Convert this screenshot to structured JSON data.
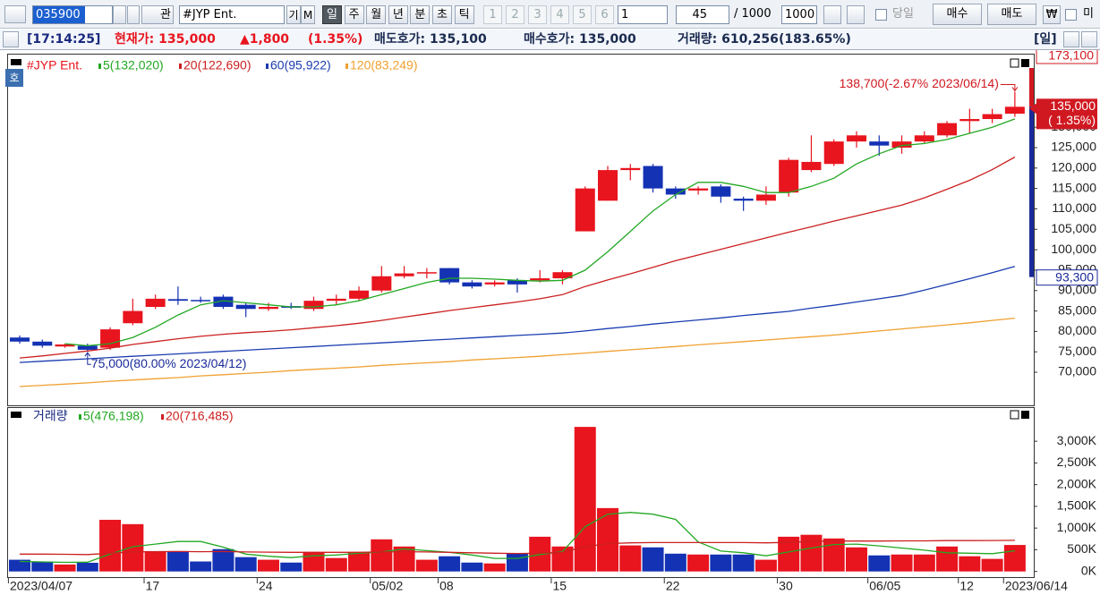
{
  "toolbar": {
    "code": "035900",
    "search": "관",
    "name": "#JYP Ent.",
    "buttons": [
      "기",
      "M"
    ],
    "periods": [
      "일",
      "주",
      "월",
      "년",
      "분",
      "초",
      "틱"
    ],
    "slots": [
      "1",
      "2",
      "3",
      "4",
      "5",
      "6"
    ],
    "unit": "1",
    "count": "45",
    "max": "/ 1000",
    "max_input": "1000",
    "today": "당일",
    "buy": "매수",
    "sell": "매도",
    "currency": "₩",
    "more": "미"
  },
  "info_bar": {
    "time": "[17:14:25]",
    "price": "현재가: 135,000",
    "change": "▲1,800",
    "change_rate": "(1.35%)",
    "ask": "매도호가: 135,100",
    "bid": "매수호가: 135,000",
    "volume": "거래량: 610,256",
    "volume_rate": "(183.65%)",
    "period": "[일]",
    "side_badge": "호"
  },
  "price_chart": {
    "type": "candlestick",
    "title": "#JYP Ent.",
    "up_color": "#e8141e",
    "down_color": "#1432b4",
    "dates": [
      "2023/04/07",
      null,
      null,
      null,
      null,
      null,
      "17",
      null,
      null,
      null,
      null,
      "24",
      null,
      null,
      null,
      null,
      "05/02",
      null,
      null,
      "08",
      null,
      null,
      null,
      null,
      "15",
      null,
      null,
      null,
      null,
      "22",
      null,
      null,
      null,
      null,
      "30",
      null,
      null,
      null,
      "06/05",
      null,
      null,
      null,
      "12",
      null,
      "2023/06/14"
    ],
    "open": [
      78500,
      77500,
      76300,
      76500,
      76000,
      82000,
      86000,
      87900,
      87700,
      88500,
      86500,
      85500,
      86200,
      85500,
      87500,
      88000,
      90000,
      93500,
      94300,
      95500,
      92000,
      91500,
      92500,
      92500,
      93000,
      104500,
      112000,
      119500,
      120500,
      115000,
      114500,
      115500,
      112500,
      112000,
      114000,
      119500,
      121000,
      126500,
      126500,
      125000,
      126500,
      128000,
      131500,
      132000,
      133300
    ],
    "high": [
      79000,
      78000,
      77000,
      77000,
      81000,
      88000,
      89000,
      91000,
      88500,
      89000,
      87000,
      87000,
      87000,
      88500,
      89000,
      91000,
      96000,
      96000,
      95500,
      95500,
      92500,
      92500,
      93000,
      95000,
      95000,
      115500,
      120500,
      121000,
      121000,
      115500,
      115500,
      116000,
      113000,
      115500,
      122500,
      128000,
      127000,
      129000,
      128000,
      128000,
      129000,
      131500,
      134500,
      134500,
      138700
    ],
    "low": [
      77000,
      76000,
      76000,
      75000,
      75500,
      81500,
      85500,
      86500,
      87000,
      85500,
      83500,
      85000,
      85500,
      85000,
      86500,
      87500,
      89500,
      93000,
      93000,
      91500,
      90500,
      91000,
      89500,
      92000,
      91500,
      104500,
      112000,
      117000,
      114000,
      112500,
      113500,
      111500,
      109500,
      111000,
      113000,
      119000,
      120500,
      125000,
      123000,
      123500,
      126000,
      127500,
      128500,
      131000,
      132500
    ],
    "close": [
      77500,
      76500,
      76800,
      75500,
      80500,
      85000,
      88000,
      87500,
      87500,
      86000,
      85500,
      86000,
      85800,
      87500,
      88000,
      90000,
      93500,
      94200,
      94500,
      92000,
      91000,
      92000,
      91500,
      93000,
      94500,
      115000,
      119500,
      120000,
      115000,
      113500,
      115000,
      113000,
      112000,
      113500,
      122000,
      121500,
      126500,
      128000,
      125500,
      126500,
      128000,
      131000,
      132000,
      133200,
      135000
    ],
    "moving_averages": [
      {
        "name": "5(132,020)",
        "color": "#22a822",
        "values": [
          null,
          null,
          77000,
          76500,
          77000,
          78500,
          81000,
          84000,
          86500,
          87500,
          87000,
          86500,
          86000,
          86000,
          86500,
          87500,
          89000,
          90500,
          92000,
          93000,
          93000,
          92800,
          92500,
          92300,
          92500,
          95000,
          99500,
          104500,
          109500,
          113500,
          116500,
          116500,
          115500,
          114000,
          114000,
          115500,
          117500,
          121000,
          123500,
          125500,
          126000,
          127000,
          128500,
          130000,
          132020
        ]
      },
      {
        "name": "20(122,690)",
        "color": "#cc2020",
        "values": [
          73500,
          74000,
          74600,
          75200,
          75900,
          76800,
          77500,
          78200,
          78800,
          79300,
          79700,
          80000,
          80400,
          80900,
          81400,
          82000,
          82700,
          83500,
          84300,
          85100,
          85800,
          86500,
          87200,
          88000,
          89000,
          91000,
          92600,
          94100,
          95700,
          97300,
          98700,
          100100,
          101500,
          102900,
          104300,
          105600,
          107000,
          108300,
          109600,
          110900,
          112700,
          114800,
          117000,
          119600,
          122690
        ]
      },
      {
        "name": "60(95,922)",
        "color": "#1a3cb0",
        "values": [
          72400,
          72700,
          73000,
          73300,
          73600,
          73900,
          74200,
          74500,
          74800,
          75100,
          75400,
          75700,
          76000,
          76300,
          76600,
          76900,
          77200,
          77500,
          77800,
          78100,
          78400,
          78700,
          79000,
          79300,
          79600,
          80100,
          80700,
          81200,
          81800,
          82300,
          82800,
          83300,
          83900,
          84400,
          84900,
          85700,
          86400,
          87200,
          88000,
          88800,
          90100,
          91500,
          92900,
          94400,
          95922
        ]
      },
      {
        "name": "120(83,249)",
        "color": "#f0a030",
        "values": [
          66500,
          66800,
          67100,
          67400,
          67800,
          68100,
          68400,
          68700,
          69100,
          69400,
          69700,
          70000,
          70400,
          70700,
          71000,
          71300,
          71700,
          72000,
          72300,
          72600,
          73000,
          73300,
          73600,
          73900,
          74300,
          74700,
          75100,
          75500,
          75900,
          76300,
          76700,
          77100,
          77500,
          77900,
          78300,
          78700,
          79100,
          79600,
          80100,
          80600,
          81100,
          81600,
          82100,
          82700,
          83249
        ]
      }
    ],
    "ylim": [
      61900,
      148000
    ],
    "yticks": [
      {
        "value": 70000,
        "label": "70,000"
      },
      {
        "value": 75000,
        "label": "75,000"
      },
      {
        "value": 80000,
        "label": "80,000"
      },
      {
        "value": 85000,
        "label": "85,000"
      },
      {
        "value": 90000,
        "label": "90,000"
      },
      {
        "value": 95000,
        "label": "95,000"
      },
      {
        "value": 100000,
        "label": "100,000"
      },
      {
        "value": 105000,
        "label": "105,000"
      },
      {
        "value": 110000,
        "label": "110,000"
      },
      {
        "value": 115000,
        "label": "115,000"
      },
      {
        "value": 120000,
        "label": "120,000"
      },
      {
        "value": 125000,
        "label": "125,000"
      },
      {
        "value": 130000,
        "label": "130,000"
      }
    ],
    "annotations": [
      "138,700(-2.67% 2023/06/14)",
      "75,000(80.00% 2023/04/12)"
    ],
    "last_label": "135,000",
    "last_change_label": "( 1.35%)",
    "range_marks": [
      {
        "value": 173100,
        "label": "173,100"
      },
      {
        "value": 93300,
        "label": "93,300"
      }
    ]
  },
  "volume_chart": {
    "type": "bar",
    "title": "거래량",
    "values": [
      270000,
      230000,
      160000,
      200000,
      1190000,
      1090000,
      470000,
      470000,
      230000,
      515000,
      330000,
      270000,
      205000,
      450000,
      310000,
      450000,
      740000,
      575000,
      270000,
      350000,
      205000,
      185000,
      410000,
      800000,
      575000,
      3330000,
      1460000,
      600000,
      555000,
      410000,
      390000,
      390000,
      390000,
      270000,
      800000,
      845000,
      760000,
      555000,
      370000,
      390000,
      390000,
      575000,
      350000,
      290000,
      610256
    ],
    "moving_averages": [
      {
        "name": "5(476,198)",
        "color": "#22a822",
        "values": [
          230000,
          220000,
          210000,
          215000,
          400000,
          570000,
          630000,
          690000,
          690000,
          560000,
          400000,
          350000,
          320000,
          360000,
          380000,
          420000,
          450000,
          520000,
          480000,
          440000,
          380000,
          300000,
          300000,
          390000,
          460000,
          1030000,
          1320000,
          1360000,
          1320000,
          1200000,
          680000,
          470000,
          430000,
          360000,
          450000,
          540000,
          620000,
          630000,
          590000,
          540000,
          490000,
          430000,
          420000,
          410000,
          476198
        ]
      },
      {
        "name": "20(716,485)",
        "color": "#cc2020",
        "values": [
          400000,
          400000,
          395000,
          390000,
          420000,
          450000,
          455000,
          460000,
          455000,
          460000,
          450000,
          445000,
          440000,
          440000,
          440000,
          440000,
          450000,
          455000,
          450000,
          440000,
          430000,
          420000,
          415000,
          420000,
          440000,
          570000,
          640000,
          660000,
          665000,
          665000,
          665000,
          665000,
          665000,
          660000,
          670000,
          690000,
          700000,
          700000,
          700000,
          705000,
          705000,
          710000,
          710000,
          712000,
          716485
        ]
      }
    ],
    "ylim": [
      -130000,
      3745000
    ],
    "yticks": [
      {
        "value": 0,
        "label": "0K"
      },
      {
        "value": 500000,
        "label": "500K"
      },
      {
        "value": 1000000,
        "label": "1,000K"
      },
      {
        "value": 1500000,
        "label": "1,500K"
      },
      {
        "value": 2000000,
        "label": "2,000K"
      },
      {
        "value": 2500000,
        "label": "2,500K"
      },
      {
        "value": 3000000,
        "label": "3,000K"
      }
    ]
  }
}
